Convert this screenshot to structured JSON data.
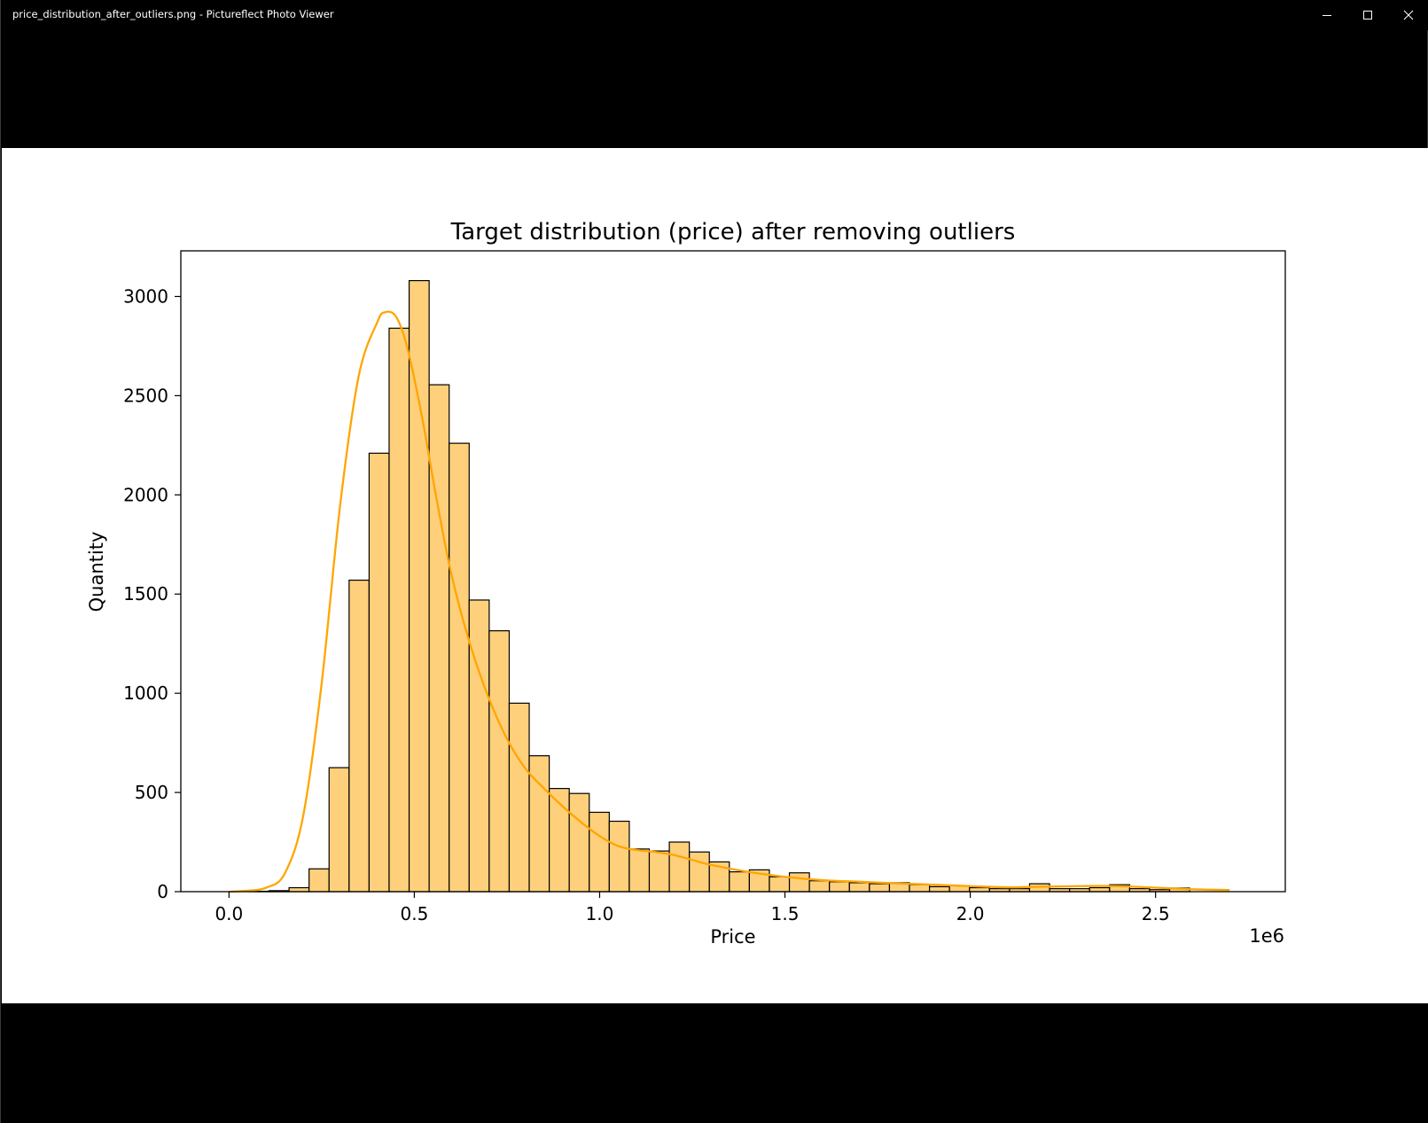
{
  "window": {
    "title": "price_distribution_after_outliers.png - Pictureflect Photo Viewer",
    "controls": {
      "minimize_icon": "minimize-icon",
      "maximize_icon": "maximize-icon",
      "close_icon": "close-icon"
    }
  },
  "chart_data": {
    "type": "bar",
    "title": "Target distribution (price) after removing outliers",
    "xlabel": "Price",
    "ylabel": "Quantity",
    "x_offset_label": "1e6",
    "xlim": [
      -130000,
      2850000
    ],
    "ylim": [
      0,
      3230
    ],
    "xticks": [
      0.0,
      500000,
      1000000,
      1500000,
      2000000,
      2500000
    ],
    "xtick_labels": [
      "0.0",
      "0.5",
      "1.0",
      "1.5",
      "2.0",
      "2.5"
    ],
    "yticks": [
      0,
      500,
      1000,
      1500,
      2000,
      2500,
      3000
    ],
    "ytick_labels": [
      "0",
      "500",
      "1000",
      "1500",
      "2000",
      "2500",
      "3000"
    ],
    "bin_start": 0,
    "bin_width": 54000,
    "values": [
      0,
      2,
      5,
      20,
      115,
      625,
      1570,
      2210,
      2840,
      3080,
      2555,
      2260,
      1470,
      1315,
      950,
      685,
      520,
      495,
      400,
      355,
      215,
      205,
      250,
      200,
      150,
      100,
      110,
      75,
      95,
      55,
      50,
      45,
      40,
      45,
      35,
      25,
      30,
      20,
      15,
      15,
      40,
      15,
      15,
      20,
      35,
      15,
      10,
      18
    ],
    "kde": {
      "x": [
        0,
        50000,
        100000,
        150000,
        200000,
        250000,
        300000,
        350000,
        400000,
        420000,
        450000,
        480000,
        520000,
        560000,
        600000,
        650000,
        700000,
        750000,
        800000,
        850000,
        900000,
        950000,
        1000000,
        1050000,
        1100000,
        1150000,
        1200000,
        1250000,
        1300000,
        1400000,
        1500000,
        1600000,
        1700000,
        1800000,
        1900000,
        2000000,
        2100000,
        2200000,
        2300000,
        2400000,
        2500000,
        2600000,
        2700000
      ],
      "y": [
        0,
        5,
        20,
        90,
        380,
        1050,
        1950,
        2600,
        2870,
        2920,
        2900,
        2750,
        2400,
        1980,
        1600,
        1250,
        980,
        770,
        620,
        520,
        430,
        350,
        280,
        230,
        210,
        200,
        185,
        160,
        135,
        100,
        75,
        58,
        50,
        42,
        35,
        28,
        22,
        25,
        28,
        28,
        20,
        12,
        8
      ]
    },
    "bar_color": "#ffd07b",
    "bar_edge_color": "#000000",
    "kde_color": "#ffa500",
    "grid": false,
    "legend": "none"
  }
}
